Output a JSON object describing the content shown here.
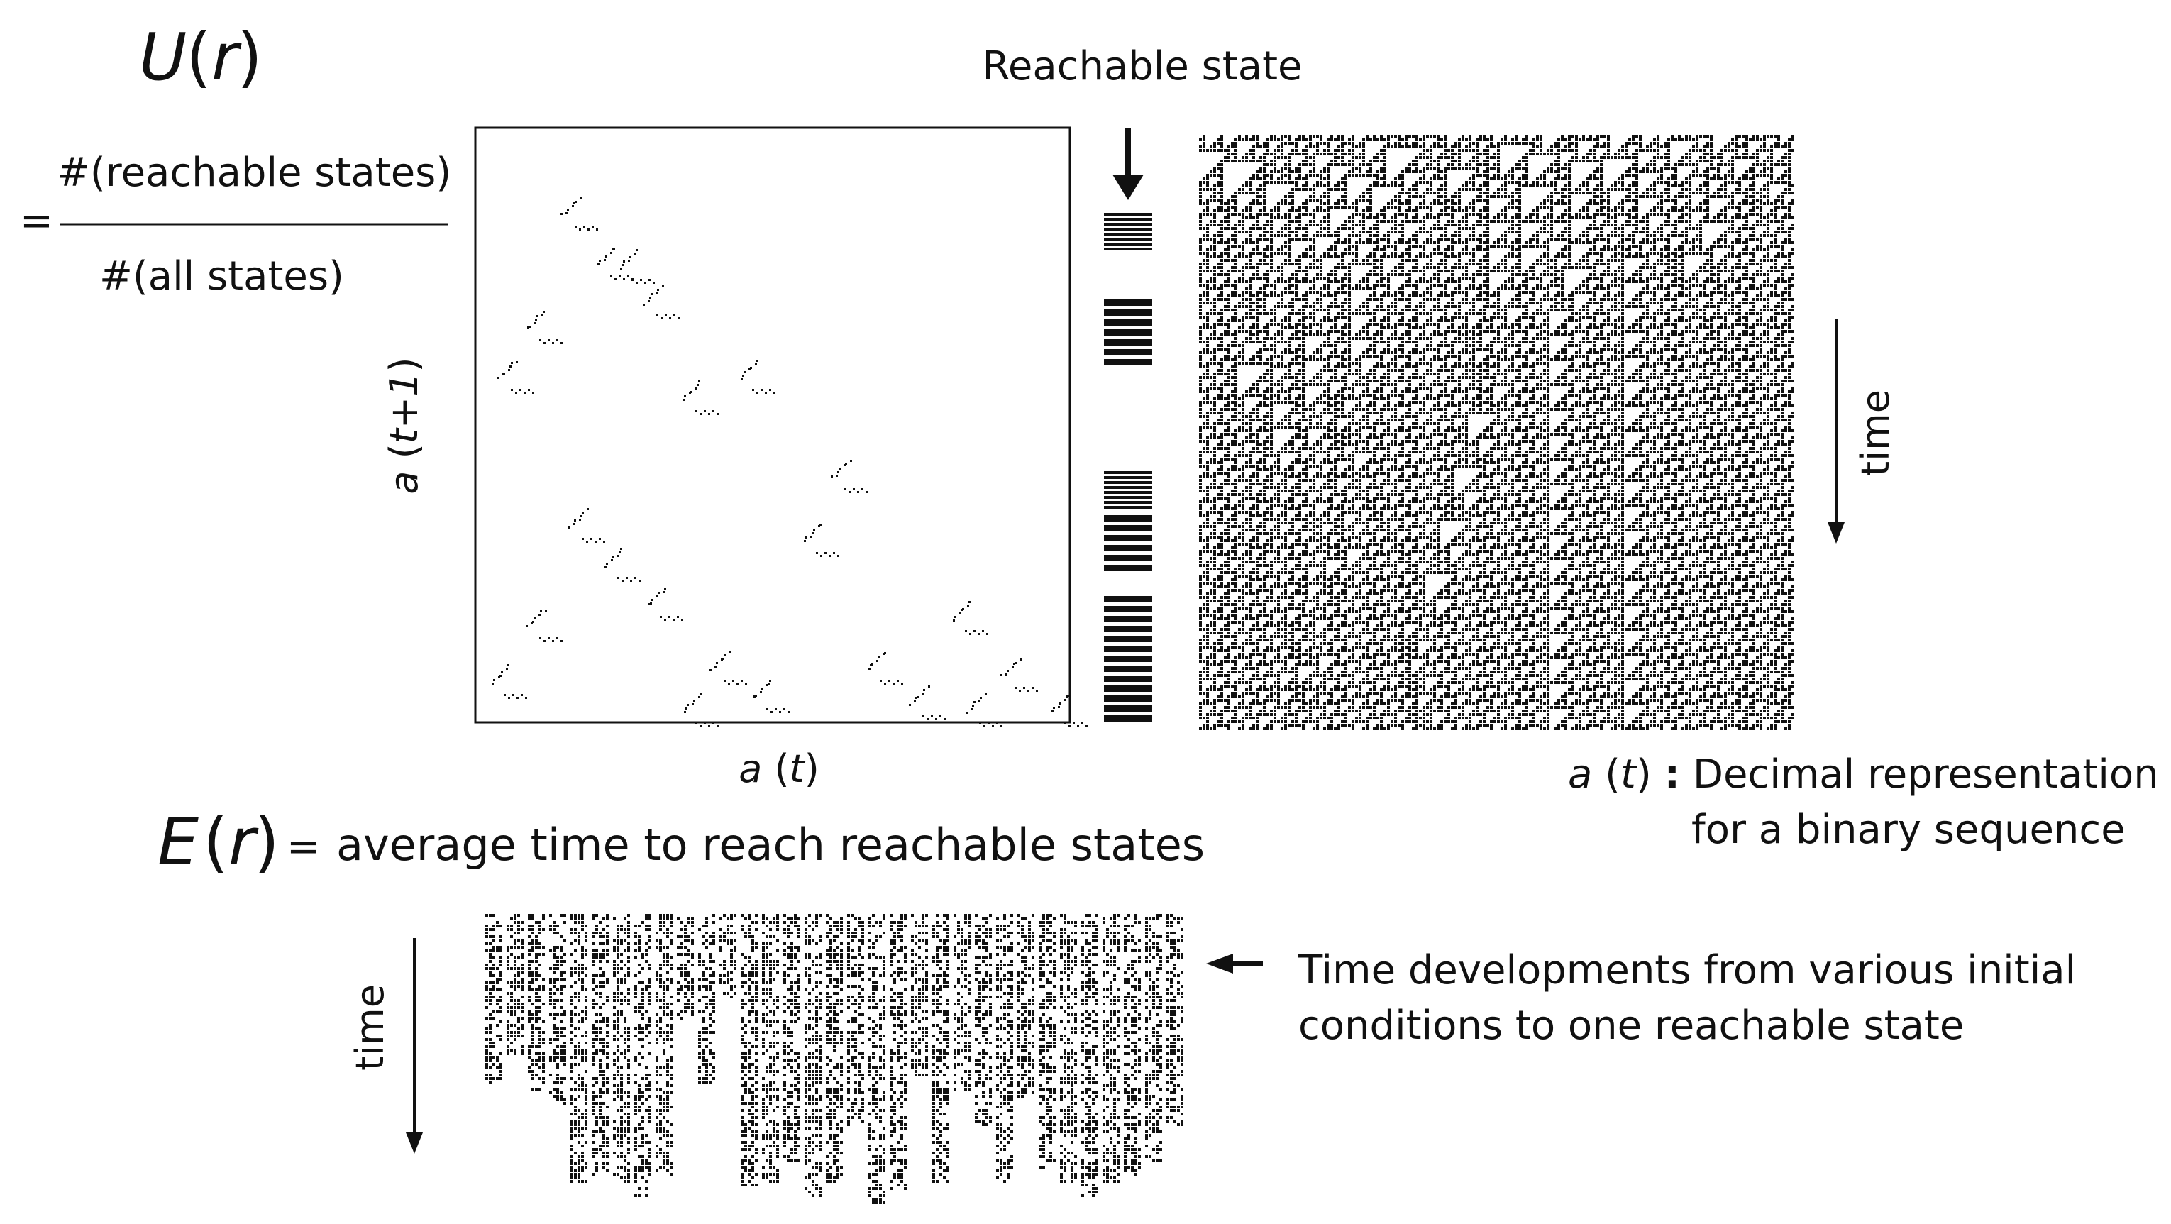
{
  "formula_u": {
    "symbol": "U",
    "arg": "r",
    "equals": "=",
    "numerator": "#(reachable states)",
    "denominator": "#(all states)"
  },
  "return_map": {
    "y_label_var": "a",
    "y_label_arg": "t+1",
    "x_label_var": "a",
    "x_label_arg": "t"
  },
  "reachable": {
    "label": "Reachable state"
  },
  "evolution": {
    "time_label": "time"
  },
  "definition": {
    "var": "a",
    "arg": "t",
    "colon": ":",
    "line1": "Decimal representation",
    "line2": "for a binary sequence"
  },
  "formula_e": {
    "symbol": "E",
    "arg": "r",
    "equals": "=",
    "text": "average time to reach reachable states"
  },
  "transients": {
    "time_label": "time",
    "caption_line1": "Time developments from various initial",
    "caption_line2": "conditions to one reachable state"
  },
  "colors": {
    "ink": "#111111",
    "background": "#ffffff"
  }
}
